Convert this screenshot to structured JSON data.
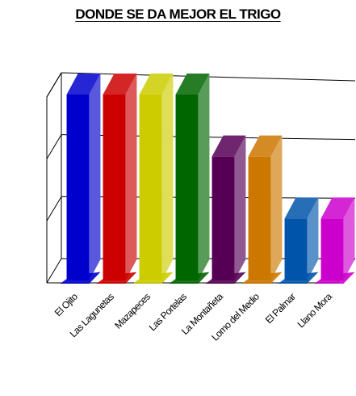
{
  "chart_data": {
    "type": "bar",
    "title": "DONDE SE DA MEJOR EL TRIGO",
    "categories": [
      "El Ojito",
      "Las Lagunetas",
      "Mazapeces",
      "Las Portelas",
      "La Montañeta",
      "Lomo del Medio",
      "El Palmar",
      "Llano Mora"
    ],
    "values": [
      3,
      3,
      3,
      3,
      2,
      2,
      1,
      1
    ],
    "colors": [
      "#0000cc",
      "#cc0000",
      "#cccc00",
      "#006600",
      "#550055",
      "#cc7700",
      "#0055aa",
      "#cc00cc"
    ],
    "ylim": [
      0,
      3
    ],
    "grid": true,
    "xlabel": "",
    "ylabel": ""
  }
}
